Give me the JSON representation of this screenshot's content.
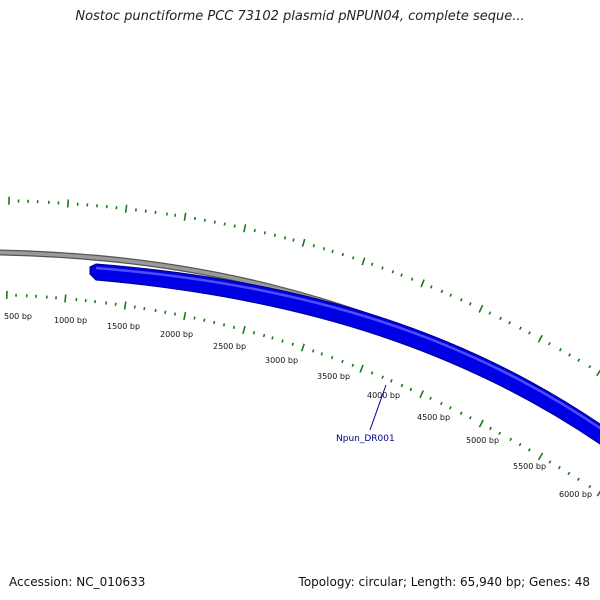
{
  "header": {
    "title": "Nostoc punctiforme PCC 73102 plasmid pNPUN04, complete seque..."
  },
  "map": {
    "scale_labels": [
      "500 bp",
      "1000 bp",
      "1500 bp",
      "2000 bp",
      "2500 bp",
      "3000 bp",
      "3500 bp",
      "4000 bp",
      "4500 bp",
      "5000 bp",
      "5500 bp",
      "6000 bp"
    ],
    "gene": {
      "label": "Npun_DR001"
    },
    "colors": {
      "backbone": "#808080",
      "gene": "#0000e6",
      "gene_highlight": "#4d4dff",
      "ticks": "#1a7a1a",
      "gene_label": "#00008b"
    }
  },
  "footer": {
    "accession": "Accession: NC_010633",
    "summary": "Topology: circular; Length: 65,940 bp; Genes: 48"
  }
}
